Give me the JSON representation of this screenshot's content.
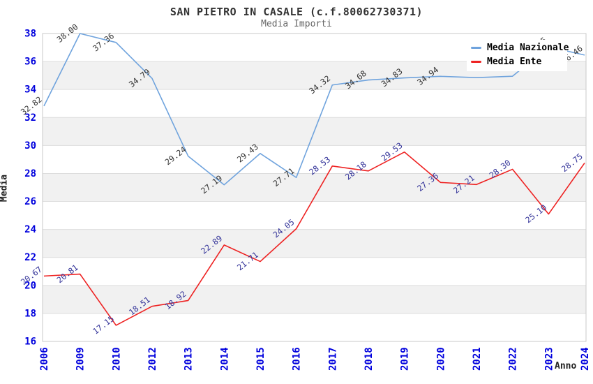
{
  "header": {
    "title": "SAN PIETRO IN CASALE (c.f.80062730371)",
    "subtitle": "Media Importi"
  },
  "legend": {
    "items": [
      {
        "label": "Media Nazionale",
        "color": "#6fa3dd"
      },
      {
        "label": "Media Ente",
        "color": "#ee2222"
      }
    ]
  },
  "colors": {
    "axis_tick_label": "#0000dd",
    "national_line": "#6fa3dd",
    "ente_line": "#ee2222",
    "national_point_label": "#333333",
    "ente_point_label": "#333399",
    "band_fill": "#f1f1f1",
    "gridline": "#dddddd",
    "plot_border": "#c9c9c9",
    "title_text": "#333333",
    "subtitle_text": "#666666"
  },
  "chart_data": {
    "type": "line",
    "title": "SAN PIETRO IN CASALE (c.f.80062730371)",
    "subtitle": "Media Importi",
    "xlabel": "Anno",
    "ylabel": "Media",
    "ylim": [
      16,
      38
    ],
    "yticks": [
      16,
      18,
      20,
      22,
      24,
      26,
      28,
      30,
      32,
      34,
      36,
      38
    ],
    "grid": "horizontal-bands-alternating",
    "legend_position": "top-right-inside",
    "categories": [
      "2006",
      "2009",
      "2010",
      "2012",
      "2013",
      "2014",
      "2015",
      "2016",
      "2017",
      "2018",
      "2019",
      "2020",
      "2021",
      "2022",
      "2023",
      "2024"
    ],
    "series": [
      {
        "name": "Media Nazionale",
        "color": "#6fa3dd",
        "label_color": "#333333",
        "values": [
          32.82,
          38.0,
          37.36,
          34.79,
          29.24,
          27.19,
          29.43,
          27.71,
          34.32,
          34.68,
          34.83,
          34.94,
          34.85,
          34.95,
          37.05,
          36.46
        ],
        "point_labels": [
          "32.82",
          "38.00",
          "37.36",
          "34.79",
          "29.24",
          "27.19",
          "29.43",
          "27.71",
          "34.32",
          "34.68",
          "34.83",
          "34.94",
          "",
          "",
          "37.05",
          "36.46"
        ]
      },
      {
        "name": "Media Ente",
        "color": "#ee2222",
        "label_color": "#333399",
        "values": [
          20.67,
          20.81,
          17.15,
          18.51,
          18.92,
          22.89,
          21.71,
          24.05,
          28.53,
          28.18,
          29.53,
          27.36,
          27.21,
          28.3,
          25.1,
          28.75
        ],
        "point_labels": [
          "20.67",
          "20.81",
          "17.15",
          "18.51",
          "18.92",
          "22.89",
          "21.71",
          "24.05",
          "28.53",
          "28.18",
          "29.53",
          "27.36",
          "27.21",
          "28.30",
          "25.10",
          "28.75"
        ]
      }
    ]
  }
}
